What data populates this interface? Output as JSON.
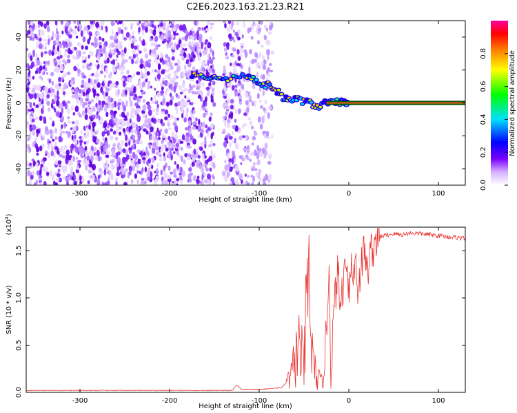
{
  "title": "C2E6.2023.163.21.23.R21",
  "chart_data": [
    {
      "type": "heatmap",
      "xlabel": "Height of straight line (km)",
      "ylabel": "Frequency (Hz)",
      "xlim": [
        -360,
        130
      ],
      "ylim": [
        -50,
        50
      ],
      "x_ticks": [
        -300,
        -200,
        -100,
        0,
        100
      ],
      "y_ticks": [
        -40,
        -20,
        0,
        20,
        40
      ],
      "grid": false,
      "colorbar": {
        "label": "Normalized spectral amplitude",
        "range": [
          0.0,
          1.0
        ],
        "ticks": [
          0.0,
          0.2,
          0.4,
          0.6,
          0.8
        ],
        "tick_labels": [
          "0.0",
          "0.2",
          "0.4",
          "0.6",
          "0.8"
        ],
        "colormap": "rainbow (white-violet-blue-cyan-green-yellow-red-magenta)"
      },
      "features": {
        "noise_floor_region_km": [
          -360,
          -95
        ],
        "gap_km": [
          -150,
          -140
        ],
        "ridge": {
          "x": [
            -175,
            -160,
            -148,
            -135,
            -115,
            -105,
            -95,
            -85,
            -75,
            -65,
            -55,
            -45,
            -35,
            -25,
            -15,
            -5,
            0
          ],
          "y": [
            16,
            16,
            16,
            15,
            17,
            14,
            11,
            10,
            4,
            2,
            2,
            0,
            -2,
            0,
            0,
            1,
            0
          ]
        },
        "steady_line": {
          "x_start_km": -25,
          "x_end_km": 130,
          "frequency_hz": 0
        }
      }
    },
    {
      "type": "line",
      "xlabel": "Height of straight line (km)",
      "ylabel": "SNR (10 * v/v)",
      "y_multiplier": "(x10",
      "y_multiplier_exp": "4",
      "y_multiplier_close": ")",
      "xlim": [
        -360,
        130
      ],
      "ylim": [
        0,
        1.75
      ],
      "x_ticks": [
        -300,
        -200,
        -100,
        0,
        100
      ],
      "y_ticks": [
        0.0,
        0.5,
        1.0,
        1.5
      ],
      "y_tick_labels": [
        "0.0",
        "0.5",
        "1.0",
        "1.5"
      ],
      "grid": false,
      "series": [
        {
          "color": "#e8322f",
          "x": [
            -360,
            -300,
            -200,
            -130,
            -125,
            -120,
            -100,
            -75,
            -65,
            -60,
            -55,
            -50,
            -47,
            -45,
            -42,
            -40,
            -37,
            -35,
            -32,
            -30,
            -28,
            -25,
            -22,
            -20,
            -18,
            -15,
            -12,
            -10,
            -7,
            -5,
            -3,
            0,
            3,
            5,
            8,
            10,
            13,
            15,
            18,
            20,
            23,
            25,
            28,
            30,
            35,
            40,
            50,
            60,
            70,
            80,
            90,
            100,
            110,
            120,
            130
          ],
          "y": [
            0.02,
            0.02,
            0.02,
            0.02,
            0.08,
            0.03,
            0.03,
            0.05,
            0.15,
            0.35,
            0.5,
            0.25,
            0.9,
            1.2,
            0.6,
            0.3,
            0.2,
            0.15,
            0.12,
            0.1,
            0.3,
            0.6,
            1.4,
            0.2,
            0.6,
            1.05,
            1.3,
            0.9,
            1.1,
            1.25,
            1.5,
            1.1,
            1.35,
            1.2,
            1.45,
            1.05,
            1.3,
            1.4,
            1.55,
            1.2,
            1.45,
            1.5,
            1.55,
            1.62,
            1.65,
            1.66,
            1.68,
            1.67,
            1.69,
            1.68,
            1.67,
            1.66,
            1.65,
            1.64,
            1.63
          ]
        }
      ]
    }
  ]
}
